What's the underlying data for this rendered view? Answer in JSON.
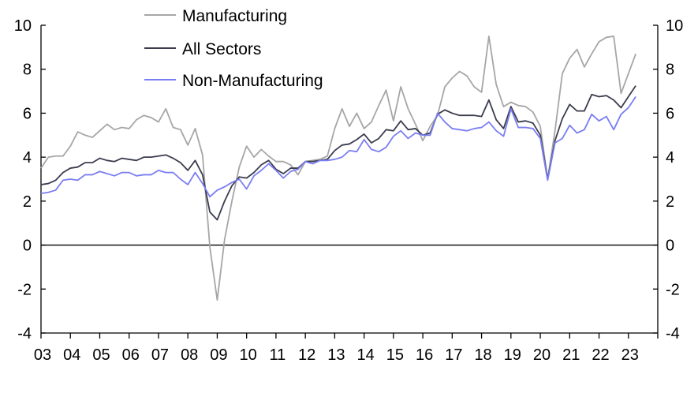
{
  "chart_data": {
    "type": "line",
    "title": "",
    "xlabel": "",
    "ylabel": "",
    "ylim": [
      -4,
      10
    ],
    "xlim": [
      2003.0,
      2024.0
    ],
    "y_ticks": [
      -4,
      -2,
      0,
      2,
      4,
      6,
      8,
      10
    ],
    "y_tick_labels": [
      "-4",
      "-2",
      "0",
      "2",
      "4",
      "6",
      "8",
      "10"
    ],
    "x_tick_labels": [
      "03",
      "04",
      "05",
      "06",
      "07",
      "08",
      "09",
      "10",
      "11",
      "12",
      "13",
      "14",
      "15",
      "16",
      "17",
      "18",
      "19",
      "20",
      "21",
      "22",
      "23"
    ],
    "grid": false,
    "legend_position": "top-left",
    "series": [
      {
        "name": "Manufacturing",
        "color": "#a6a6a6",
        "x": [
          2003.0,
          2003.25,
          2003.5,
          2003.75,
          2004.0,
          2004.25,
          2004.5,
          2004.75,
          2005.0,
          2005.25,
          2005.5,
          2005.75,
          2006.0,
          2006.25,
          2006.5,
          2006.75,
          2007.0,
          2007.25,
          2007.5,
          2007.75,
          2008.0,
          2008.25,
          2008.5,
          2008.75,
          2009.0,
          2009.25,
          2009.5,
          2009.75,
          2010.0,
          2010.25,
          2010.5,
          2010.75,
          2011.0,
          2011.25,
          2011.5,
          2011.75,
          2012.0,
          2012.25,
          2012.5,
          2012.75,
          2013.0,
          2013.25,
          2013.5,
          2013.75,
          2014.0,
          2014.25,
          2014.5,
          2014.75,
          2015.0,
          2015.25,
          2015.5,
          2015.75,
          2016.0,
          2016.25,
          2016.5,
          2016.75,
          2017.0,
          2017.25,
          2017.5,
          2017.75,
          2018.0,
          2018.25,
          2018.5,
          2018.75,
          2019.0,
          2019.25,
          2019.5,
          2019.75,
          2020.0,
          2020.25,
          2020.5,
          2020.75,
          2021.0,
          2021.25,
          2021.5,
          2021.75,
          2022.0,
          2022.25,
          2022.5,
          2022.75,
          2023.0,
          2023.25
        ],
        "values": [
          3.5,
          4.0,
          4.05,
          4.05,
          4.5,
          5.15,
          5.0,
          4.9,
          5.2,
          5.5,
          5.25,
          5.35,
          5.3,
          5.7,
          5.9,
          5.8,
          5.6,
          6.2,
          5.35,
          5.25,
          4.55,
          5.3,
          4.1,
          -0.1,
          -2.5,
          0.25,
          2.0,
          3.55,
          4.5,
          4.0,
          4.35,
          4.05,
          3.8,
          3.8,
          3.65,
          3.2,
          3.8,
          3.85,
          3.9,
          4.05,
          5.3,
          6.2,
          5.4,
          6.0,
          5.3,
          5.6,
          6.35,
          7.05,
          5.65,
          7.2,
          6.2,
          5.5,
          4.75,
          5.4,
          5.9,
          7.2,
          7.6,
          7.9,
          7.7,
          7.2,
          6.95,
          9.5,
          7.3,
          6.3,
          6.5,
          6.35,
          6.3,
          6.05,
          5.4,
          3.0,
          5.2,
          7.8,
          8.5,
          8.9,
          8.1,
          8.7,
          9.25,
          9.45,
          9.5,
          6.9,
          7.8,
          8.7
        ]
      },
      {
        "name": "All Sectors",
        "color": "#3b3c4e",
        "x": [
          2003.0,
          2003.25,
          2003.5,
          2003.75,
          2004.0,
          2004.25,
          2004.5,
          2004.75,
          2005.0,
          2005.25,
          2005.5,
          2005.75,
          2006.0,
          2006.25,
          2006.5,
          2006.75,
          2007.0,
          2007.25,
          2007.5,
          2007.75,
          2008.0,
          2008.25,
          2008.5,
          2008.75,
          2009.0,
          2009.25,
          2009.5,
          2009.75,
          2010.0,
          2010.25,
          2010.5,
          2010.75,
          2011.0,
          2011.25,
          2011.5,
          2011.75,
          2012.0,
          2012.25,
          2012.5,
          2012.75,
          2013.0,
          2013.25,
          2013.5,
          2013.75,
          2014.0,
          2014.25,
          2014.5,
          2014.75,
          2015.0,
          2015.25,
          2015.5,
          2015.75,
          2016.0,
          2016.25,
          2016.5,
          2016.75,
          2017.0,
          2017.25,
          2017.5,
          2017.75,
          2018.0,
          2018.25,
          2018.5,
          2018.75,
          2019.0,
          2019.25,
          2019.5,
          2019.75,
          2020.0,
          2020.25,
          2020.5,
          2020.75,
          2021.0,
          2021.25,
          2021.5,
          2021.75,
          2022.0,
          2022.25,
          2022.5,
          2022.75,
          2023.0,
          2023.25
        ],
        "values": [
          2.75,
          2.8,
          2.95,
          3.3,
          3.5,
          3.55,
          3.75,
          3.75,
          3.95,
          3.85,
          3.8,
          3.95,
          3.9,
          3.85,
          4.0,
          4.0,
          4.05,
          4.1,
          3.95,
          3.75,
          3.4,
          3.85,
          3.2,
          1.5,
          1.15,
          2.0,
          2.7,
          3.1,
          3.05,
          3.3,
          3.65,
          3.85,
          3.45,
          3.25,
          3.5,
          3.5,
          3.8,
          3.8,
          3.85,
          3.9,
          4.3,
          4.55,
          4.6,
          4.8,
          5.05,
          4.65,
          4.85,
          5.25,
          5.2,
          5.65,
          5.25,
          5.3,
          5.0,
          5.1,
          5.95,
          6.15,
          6.0,
          5.9,
          5.9,
          5.9,
          5.85,
          6.6,
          5.7,
          5.3,
          6.3,
          5.6,
          5.65,
          5.55,
          5.0,
          3.0,
          4.75,
          5.75,
          6.4,
          6.1,
          6.1,
          6.85,
          6.75,
          6.8,
          6.6,
          6.25,
          6.75,
          7.25
        ]
      },
      {
        "name": "Non-Manufacturing",
        "color": "#7a7ef2",
        "x": [
          2003.0,
          2003.25,
          2003.5,
          2003.75,
          2004.0,
          2004.25,
          2004.5,
          2004.75,
          2005.0,
          2005.25,
          2005.5,
          2005.75,
          2006.0,
          2006.25,
          2006.5,
          2006.75,
          2007.0,
          2007.25,
          2007.5,
          2007.75,
          2008.0,
          2008.25,
          2008.5,
          2008.75,
          2009.0,
          2009.25,
          2009.5,
          2009.75,
          2010.0,
          2010.25,
          2010.5,
          2010.75,
          2011.0,
          2011.25,
          2011.5,
          2011.75,
          2012.0,
          2012.25,
          2012.5,
          2012.75,
          2013.0,
          2013.25,
          2013.5,
          2013.75,
          2014.0,
          2014.25,
          2014.5,
          2014.75,
          2015.0,
          2015.25,
          2015.5,
          2015.75,
          2016.0,
          2016.25,
          2016.5,
          2016.75,
          2017.0,
          2017.25,
          2017.5,
          2017.75,
          2018.0,
          2018.25,
          2018.5,
          2018.75,
          2019.0,
          2019.25,
          2019.5,
          2019.75,
          2020.0,
          2020.25,
          2020.5,
          2020.75,
          2021.0,
          2021.25,
          2021.5,
          2021.75,
          2022.0,
          2022.25,
          2022.5,
          2022.75,
          2023.0,
          2023.25
        ],
        "values": [
          2.35,
          2.4,
          2.5,
          2.95,
          3.0,
          2.95,
          3.2,
          3.2,
          3.35,
          3.25,
          3.15,
          3.3,
          3.3,
          3.15,
          3.2,
          3.2,
          3.4,
          3.3,
          3.3,
          3.0,
          2.75,
          3.3,
          2.8,
          2.2,
          2.5,
          2.65,
          2.85,
          3.0,
          2.55,
          3.15,
          3.4,
          3.7,
          3.4,
          3.05,
          3.35,
          3.45,
          3.8,
          3.7,
          3.85,
          3.85,
          3.9,
          4.0,
          4.3,
          4.25,
          4.8,
          4.35,
          4.25,
          4.45,
          4.95,
          5.2,
          4.85,
          5.1,
          5.0,
          5.0,
          6.0,
          5.6,
          5.3,
          5.25,
          5.2,
          5.3,
          5.35,
          5.6,
          5.2,
          4.95,
          6.2,
          5.35,
          5.35,
          5.3,
          4.85,
          2.95,
          4.65,
          4.85,
          5.45,
          5.1,
          5.25,
          5.95,
          5.65,
          5.85,
          5.25,
          5.95,
          6.25,
          6.75
        ]
      }
    ]
  }
}
